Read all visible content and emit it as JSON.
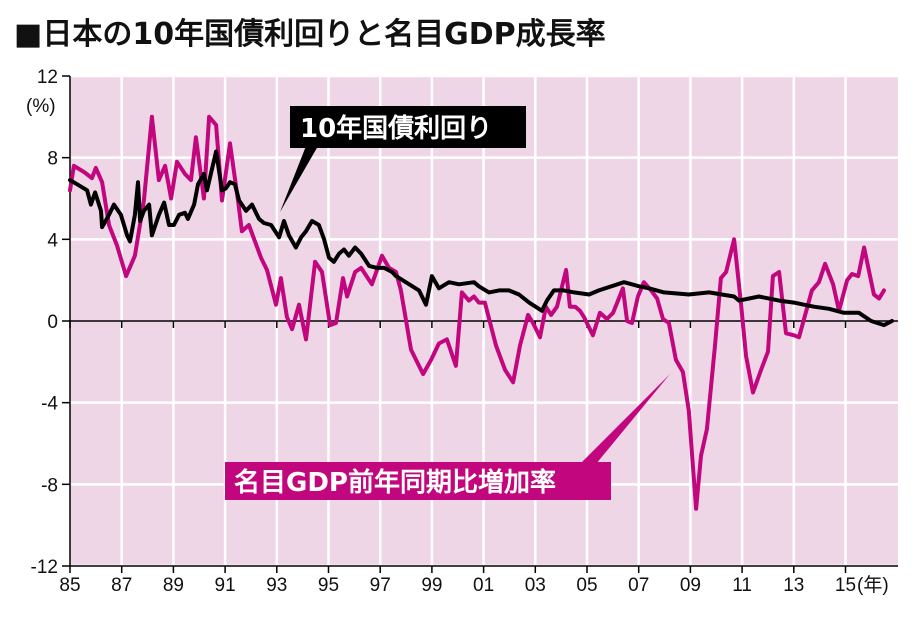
{
  "chart_data": {
    "type": "line",
    "title": "■日本の10年国債利回りと名目GDP成長率",
    "ylabel": "(%)",
    "xlabel": "(年)",
    "ylim": [
      -12,
      12
    ],
    "xlim": [
      1985,
      2017
    ],
    "grid": true,
    "yticks": [
      12,
      8,
      4,
      0,
      -4,
      -8,
      -12
    ],
    "xticks": [
      {
        "year": 1985,
        "label": "85"
      },
      {
        "year": 1987,
        "label": "87"
      },
      {
        "year": 1989,
        "label": "89"
      },
      {
        "year": 1991,
        "label": "91"
      },
      {
        "year": 1993,
        "label": "93"
      },
      {
        "year": 1995,
        "label": "95"
      },
      {
        "year": 1997,
        "label": "97"
      },
      {
        "year": 1999,
        "label": "99"
      },
      {
        "year": 2001,
        "label": "01"
      },
      {
        "year": 2003,
        "label": "03"
      },
      {
        "year": 2005,
        "label": "05"
      },
      {
        "year": 2007,
        "label": "07"
      },
      {
        "year": 2009,
        "label": "09"
      },
      {
        "year": 2011,
        "label": "11"
      },
      {
        "year": 2013,
        "label": "13"
      },
      {
        "year": 2015,
        "label": "15"
      }
    ],
    "series": [
      {
        "name": "10年国債利回り",
        "color": "#000000",
        "x": [
          1985.0,
          1985.27,
          1985.66,
          1985.81,
          1985.97,
          1986.2,
          1986.24,
          1986.51,
          1986.7,
          1986.97,
          1987.21,
          1987.32,
          1987.51,
          1987.63,
          1987.71,
          1987.86,
          1988.06,
          1988.17,
          1988.44,
          1988.64,
          1988.83,
          1989.02,
          1989.22,
          1989.45,
          1989.56,
          1989.8,
          1989.95,
          1990.18,
          1990.3,
          1990.65,
          1990.88,
          1991.03,
          1991.19,
          1991.38,
          1991.54,
          1991.81,
          1992.04,
          1992.31,
          1992.5,
          1992.78,
          1993.09,
          1993.28,
          1993.47,
          1993.74,
          1993.94,
          1994.13,
          1994.36,
          1994.63,
          1994.83,
          1995.02,
          1995.21,
          1995.41,
          1995.6,
          1995.79,
          1996.03,
          1996.26,
          1996.57,
          1996.88,
          1997.15,
          1997.46,
          1997.61,
          1998.5,
          1998.77,
          1999.0,
          1999.27,
          1999.66,
          2000.05,
          2000.63,
          2000.82,
          2001.21,
          2001.6,
          2001.98,
          2002.37,
          2002.76,
          2003.26,
          2003.45,
          2003.72,
          2004.11,
          2004.5,
          2005.08,
          2005.46,
          2006.43,
          2007.01,
          2007.4,
          2007.98,
          2008.94,
          2009.72,
          2010.69,
          2010.88,
          2011.65,
          2012.43,
          2013.01,
          2013.39,
          2013.78,
          2014.36,
          2014.94,
          2015.52,
          2015.99,
          2016.49,
          2016.8
        ],
        "values": [
          6.9,
          6.7,
          6.4,
          5.7,
          6.3,
          5.4,
          4.6,
          5.2,
          5.7,
          5.2,
          4.2,
          3.9,
          5.2,
          6.8,
          4.9,
          5.4,
          5.7,
          4.2,
          5.2,
          5.8,
          4.7,
          4.7,
          5.2,
          5.3,
          5.0,
          5.7,
          6.7,
          7.2,
          6.4,
          8.3,
          6.4,
          6.5,
          6.8,
          6.7,
          5.9,
          5.4,
          5.7,
          5.0,
          4.8,
          4.7,
          4.1,
          4.9,
          4.2,
          3.6,
          4.1,
          4.4,
          4.9,
          4.7,
          4.0,
          3.1,
          2.9,
          3.3,
          3.5,
          3.2,
          3.6,
          3.3,
          2.7,
          2.6,
          2.6,
          2.4,
          2.2,
          1.5,
          0.8,
          2.2,
          1.6,
          1.9,
          1.8,
          1.9,
          1.7,
          1.4,
          1.5,
          1.5,
          1.3,
          0.9,
          0.5,
          1.0,
          1.5,
          1.5,
          1.4,
          1.3,
          1.5,
          1.9,
          1.7,
          1.6,
          1.4,
          1.3,
          1.4,
          1.2,
          1.0,
          1.2,
          1.0,
          0.9,
          0.8,
          0.7,
          0.6,
          0.4,
          0.4,
          0.0,
          -0.2,
          0.0
        ]
      },
      {
        "name": "名目GDP前年同期比増加率",
        "color": "#c2067e",
        "x": [
          1985.0,
          1985.15,
          1985.54,
          1985.85,
          1986.0,
          1986.24,
          1986.51,
          1986.82,
          1987.17,
          1987.51,
          1987.86,
          1988.17,
          1988.44,
          1988.68,
          1988.91,
          1989.14,
          1989.45,
          1989.68,
          1989.87,
          1990.18,
          1990.38,
          1990.65,
          1990.88,
          1991.19,
          1991.5,
          1991.65,
          1991.92,
          1992.39,
          1992.62,
          1992.97,
          1993.16,
          1993.39,
          1993.59,
          1993.86,
          1994.13,
          1994.48,
          1994.75,
          1995.06,
          1995.29,
          1995.56,
          1995.72,
          1996.03,
          1996.26,
          1996.68,
          1997.07,
          1997.34,
          1997.61,
          1997.8,
          1998.19,
          1998.66,
          1998.97,
          1999.27,
          1999.58,
          1999.93,
          2000.16,
          2000.43,
          2000.63,
          2000.82,
          2001.05,
          2001.48,
          2001.83,
          2002.14,
          2002.41,
          2002.72,
          2002.91,
          2003.18,
          2003.41,
          2003.61,
          2003.84,
          2004.19,
          2004.34,
          2004.54,
          2004.73,
          2004.88,
          2005.23,
          2005.5,
          2005.77,
          2006.01,
          2006.2,
          2006.39,
          2006.55,
          2006.74,
          2006.97,
          2007.2,
          2007.48,
          2007.71,
          2007.94,
          2008.17,
          2008.44,
          2008.71,
          2008.94,
          2009.22,
          2009.41,
          2009.64,
          2009.95,
          2010.18,
          2010.38,
          2010.69,
          2010.96,
          2011.15,
          2011.42,
          2011.73,
          2012.0,
          2012.19,
          2012.43,
          2012.7,
          2013.01,
          2013.2,
          2013.7,
          2013.97,
          2014.21,
          2014.52,
          2014.75,
          2015.06,
          2015.25,
          2015.49,
          2015.72,
          2016.1,
          2016.3,
          2016.49
        ],
        "values": [
          6.4,
          7.6,
          7.3,
          7.0,
          7.5,
          6.8,
          4.7,
          3.7,
          2.2,
          3.2,
          5.9,
          10.0,
          6.9,
          7.6,
          6.0,
          7.8,
          7.2,
          6.9,
          9.0,
          6.0,
          10.0,
          9.6,
          5.9,
          8.7,
          5.9,
          4.4,
          4.7,
          3.1,
          2.5,
          0.8,
          2.1,
          0.2,
          -0.4,
          0.8,
          -0.9,
          2.9,
          2.4,
          -0.2,
          -0.1,
          2.1,
          1.2,
          2.4,
          2.6,
          1.8,
          3.2,
          2.6,
          2.4,
          1.5,
          -1.4,
          -2.6,
          -1.9,
          -1.1,
          -0.9,
          -2.2,
          1.4,
          1.0,
          1.2,
          0.9,
          0.9,
          -1.2,
          -2.4,
          -3.0,
          -1.2,
          0.3,
          -0.1,
          -0.8,
          0.7,
          0.3,
          0.7,
          2.5,
          0.7,
          0.7,
          0.5,
          0.2,
          -0.7,
          0.4,
          0.1,
          0.4,
          1.0,
          1.6,
          0.0,
          -0.1,
          1.2,
          1.9,
          1.5,
          1.1,
          0.1,
          -0.1,
          -1.9,
          -2.5,
          -4.4,
          -9.2,
          -6.6,
          -5.3,
          -1.2,
          2.1,
          2.4,
          4.0,
          0.8,
          -1.7,
          -3.5,
          -2.4,
          -1.5,
          2.2,
          2.4,
          -0.6,
          -0.7,
          -0.8,
          1.5,
          1.9,
          2.8,
          1.8,
          0.5,
          2.0,
          2.3,
          2.2,
          3.6,
          1.3,
          1.1,
          1.5
        ]
      }
    ],
    "annotations": [
      "10年国債利回り",
      "名目GDP前年同期比増加率"
    ]
  }
}
